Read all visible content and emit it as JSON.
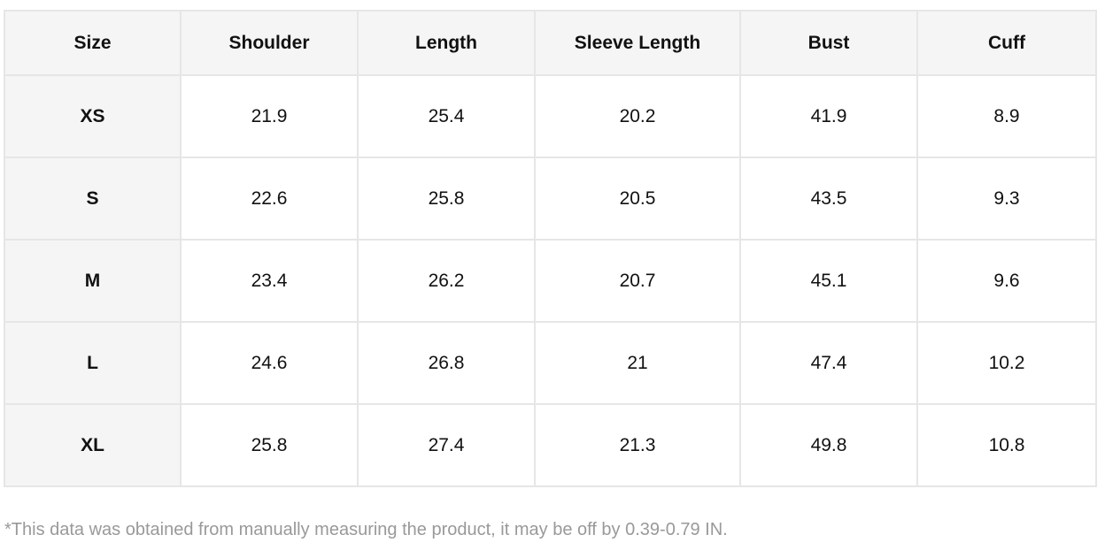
{
  "table": {
    "headers": [
      "Size",
      "Shoulder",
      "Length",
      "Sleeve Length",
      "Bust",
      "Cuff"
    ],
    "rows": [
      [
        "XS",
        "21.9",
        "25.4",
        "20.2",
        "41.9",
        "8.9"
      ],
      [
        "S",
        "22.6",
        "25.8",
        "20.5",
        "43.5",
        "9.3"
      ],
      [
        "M",
        "23.4",
        "26.2",
        "20.7",
        "45.1",
        "9.6"
      ],
      [
        "L",
        "24.6",
        "26.8",
        "21",
        "47.4",
        "10.2"
      ],
      [
        "XL",
        "25.8",
        "27.4",
        "21.3",
        "49.8",
        "10.8"
      ]
    ]
  },
  "footnote": "*This data was obtained from manually measuring the product, it may be off by 0.39-0.79 IN."
}
